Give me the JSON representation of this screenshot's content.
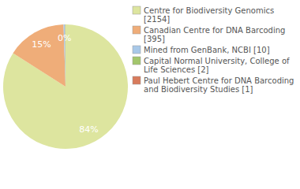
{
  "chart_data": {
    "type": "pie",
    "categories": [
      "Centre for Biodiversity Genomics [2154]",
      "Canadian Centre for DNA Barcoding [395]",
      "Mined from GenBank, NCBI [10]",
      "Capital Normal University, College of Life Sciences [2]",
      "Paul Hebert Centre for DNA Barcoding and Biodiversity Studies [1]"
    ],
    "values": [
      84.07,
      15.42,
      0.39,
      0.08,
      0.04
    ],
    "value_labels": [
      "84%",
      "15%",
      "0%",
      null,
      null
    ],
    "colors": [
      "#dde59f",
      "#efad79",
      "#a8c8e8",
      "#a3c66c",
      "#d87b5c"
    ],
    "data_labels": true,
    "legend": "right"
  }
}
